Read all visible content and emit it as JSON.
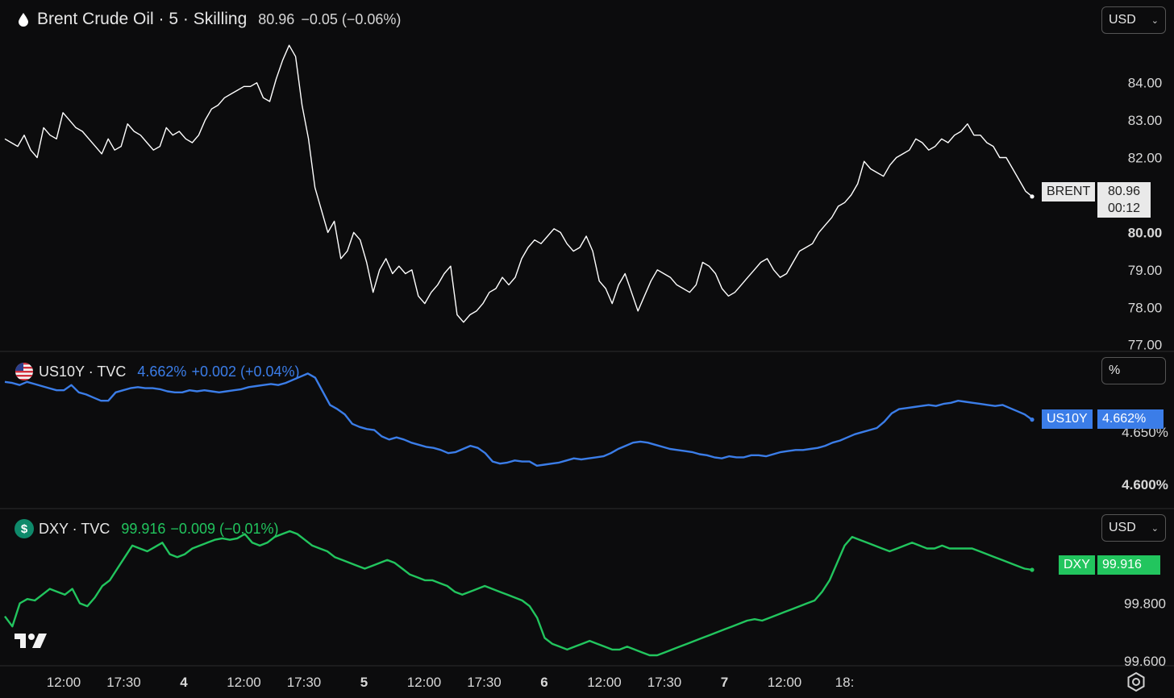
{
  "panes": [
    {
      "id": "brent",
      "icon": "drop-icon",
      "title": "Brent Crude Oil · 5 · Skilling",
      "last": "80.96",
      "change": "−0.05 (−0.06%)",
      "unit": "USD",
      "color": "#ffffff",
      "tag_label": "BRENT",
      "tag_value": "80.96",
      "tag_countdown": "00:12",
      "y_ticks": [
        "84.00",
        "83.00",
        "82.00",
        "80.00",
        "79.00",
        "78.00",
        "77.00"
      ],
      "y_tick_values": [
        84,
        83,
        82,
        80,
        79,
        78,
        77
      ],
      "y_bold_tick": "80.00",
      "ylim": [
        76.95,
        85.35
      ]
    },
    {
      "id": "us10y",
      "icon": "us-flag-icon",
      "title": "US10Y · TVC",
      "last": "4.662%",
      "change": "+0.002 (+0.04%)",
      "unit": "%",
      "color": "#3b7de8",
      "tag_label": "US10Y",
      "tag_value": "4.662%",
      "y_ticks": [
        "4.650%",
        "4.600%"
      ],
      "y_tick_values": [
        4.65,
        4.6
      ],
      "y_bold_tick": "4.600%",
      "ylim": [
        4.5855,
        4.7125
      ]
    },
    {
      "id": "dxy",
      "icon": "dollar-icon",
      "title": "DXY · TVC",
      "last": "99.916",
      "change": "−0.009 (−0.01%)",
      "unit": "USD",
      "color": "#22c55e",
      "tag_label": "DXY",
      "tag_value": "99.916",
      "y_ticks": [
        "99.800",
        "99.600"
      ],
      "y_tick_values": [
        99.8,
        99.6
      ],
      "y_bold_tick": "",
      "ylim": [
        99.595,
        100.075
      ]
    }
  ],
  "x_axis": {
    "labels": [
      "12:00",
      "17:30",
      "4",
      "12:00",
      "17:30",
      "5",
      "12:00",
      "17:30",
      "6",
      "12:00",
      "17:30",
      "7",
      "12:00",
      "18:"
    ],
    "bold": [
      "4",
      "5",
      "6",
      "7"
    ]
  },
  "chart_data": [
    {
      "type": "line",
      "title": "Brent Crude Oil · 5 · Skilling",
      "series": [
        {
          "name": "BRENT",
          "unit": "USD",
          "values": [
            82.5,
            82.4,
            82.3,
            82.6,
            82.2,
            82.0,
            82.8,
            82.6,
            82.5,
            83.2,
            83.0,
            82.8,
            82.7,
            82.5,
            82.3,
            82.1,
            82.5,
            82.2,
            82.3,
            82.9,
            82.7,
            82.6,
            82.4,
            82.2,
            82.3,
            82.8,
            82.6,
            82.7,
            82.5,
            82.4,
            82.6,
            83.0,
            83.3,
            83.4,
            83.6,
            83.7,
            83.8,
            83.9,
            83.9,
            84.0,
            83.6,
            83.5,
            84.1,
            84.6,
            85.0,
            84.7,
            83.4,
            82.5,
            81.2,
            80.6,
            80.0,
            80.3,
            79.3,
            79.5,
            80.0,
            79.8,
            79.2,
            78.4,
            79.0,
            79.3,
            78.9,
            79.1,
            78.9,
            79.0,
            78.3,
            78.1,
            78.4,
            78.6,
            78.9,
            79.1,
            77.8,
            77.6,
            77.8,
            77.9,
            78.1,
            78.4,
            78.5,
            78.8,
            78.6,
            78.8,
            79.3,
            79.6,
            79.8,
            79.7,
            79.9,
            80.1,
            80.0,
            79.7,
            79.5,
            79.6,
            79.9,
            79.5,
            78.7,
            78.5,
            78.1,
            78.6,
            78.9,
            78.4,
            77.9,
            78.3,
            78.7,
            79.0,
            78.9,
            78.8,
            78.6,
            78.5,
            78.4,
            78.6,
            79.2,
            79.1,
            78.9,
            78.5,
            78.3,
            78.4,
            78.6,
            78.8,
            79.0,
            79.2,
            79.3,
            79.0,
            78.8,
            78.9,
            79.2,
            79.5,
            79.6,
            79.7,
            80.0,
            80.2,
            80.4,
            80.7,
            80.8,
            81.0,
            81.3,
            81.9,
            81.7,
            81.6,
            81.5,
            81.8,
            82.0,
            82.1,
            82.2,
            82.5,
            82.4,
            82.2,
            82.3,
            82.5,
            82.4,
            82.6,
            82.7,
            82.9,
            82.6,
            82.6,
            82.4,
            82.3,
            82.0,
            82.0,
            81.7,
            81.4,
            81.1,
            80.96
          ]
        }
      ],
      "xlabel": "",
      "ylabel": "",
      "ylim": [
        76.95,
        85.35
      ]
    },
    {
      "type": "line",
      "title": "US10Y · TVC",
      "series": [
        {
          "name": "US10Y",
          "unit": "%",
          "values": [
            4.698,
            4.697,
            4.695,
            4.698,
            4.696,
            4.694,
            4.692,
            4.69,
            4.69,
            4.695,
            4.688,
            4.686,
            4.683,
            4.68,
            4.68,
            4.688,
            4.69,
            4.692,
            4.693,
            4.692,
            4.692,
            4.691,
            4.689,
            4.688,
            4.688,
            4.69,
            4.689,
            4.69,
            4.689,
            4.688,
            4.689,
            4.69,
            4.691,
            4.693,
            4.694,
            4.695,
            4.696,
            4.695,
            4.697,
            4.7,
            4.703,
            4.706,
            4.702,
            4.689,
            4.676,
            4.672,
            4.667,
            4.658,
            4.655,
            4.653,
            4.652,
            4.646,
            4.643,
            4.645,
            4.643,
            4.64,
            4.638,
            4.636,
            4.635,
            4.633,
            4.63,
            4.631,
            4.634,
            4.637,
            4.635,
            4.63,
            4.622,
            4.62,
            4.621,
            4.623,
            4.622,
            4.622,
            4.618,
            4.619,
            4.62,
            4.621,
            4.623,
            4.625,
            4.624,
            4.625,
            4.626,
            4.627,
            4.63,
            4.634,
            4.637,
            4.64,
            4.641,
            4.64,
            4.638,
            4.636,
            4.634,
            4.633,
            4.632,
            4.631,
            4.629,
            4.628,
            4.626,
            4.625,
            4.627,
            4.626,
            4.626,
            4.628,
            4.628,
            4.627,
            4.629,
            4.631,
            4.632,
            4.633,
            4.633,
            4.634,
            4.635,
            4.637,
            4.64,
            4.642,
            4.645,
            4.648,
            4.65,
            4.652,
            4.654,
            4.66,
            4.668,
            4.672,
            4.673,
            4.674,
            4.675,
            4.676,
            4.675,
            4.677,
            4.678,
            4.68,
            4.679,
            4.678,
            4.677,
            4.676,
            4.675,
            4.676,
            4.673,
            4.67,
            4.667,
            4.662
          ]
        }
      ],
      "xlabel": "",
      "ylabel": "",
      "ylim": [
        4.5855,
        4.7125
      ]
    },
    {
      "type": "line",
      "title": "DXY · TVC",
      "series": [
        {
          "name": "DXY",
          "unit": "USD",
          "values": [
            99.755,
            99.72,
            99.8,
            99.815,
            99.81,
            99.83,
            99.85,
            99.84,
            99.83,
            99.85,
            99.8,
            99.79,
            99.82,
            99.86,
            99.88,
            99.92,
            99.96,
            100.0,
            99.99,
            99.98,
            99.995,
            100.01,
            99.97,
            99.96,
            99.97,
            99.99,
            100.0,
            100.01,
            100.02,
            100.025,
            100.02,
            100.025,
            100.04,
            100.01,
            100.0,
            100.01,
            100.03,
            100.04,
            100.05,
            100.04,
            100.02,
            100.0,
            99.99,
            99.98,
            99.96,
            99.95,
            99.94,
            99.93,
            99.92,
            99.93,
            99.94,
            99.95,
            99.94,
            99.92,
            99.9,
            99.89,
            99.88,
            99.88,
            99.87,
            99.86,
            99.84,
            99.83,
            99.84,
            99.85,
            99.86,
            99.85,
            99.84,
            99.83,
            99.82,
            99.81,
            99.79,
            99.75,
            99.68,
            99.66,
            99.65,
            99.64,
            99.65,
            99.66,
            99.67,
            99.66,
            99.65,
            99.64,
            99.64,
            99.65,
            99.64,
            99.63,
            99.62,
            99.62,
            99.63,
            99.64,
            99.65,
            99.66,
            99.67,
            99.68,
            99.69,
            99.7,
            99.71,
            99.72,
            99.73,
            99.74,
            99.745,
            99.74,
            99.75,
            99.76,
            99.77,
            99.78,
            99.79,
            99.8,
            99.81,
            99.84,
            99.88,
            99.94,
            100.0,
            100.03,
            100.02,
            100.01,
            100.0,
            99.99,
            99.98,
            99.99,
            100.0,
            100.01,
            100.0,
            99.99,
            99.99,
            100.0,
            99.99,
            99.99,
            99.99,
            99.99,
            99.98,
            99.97,
            99.96,
            99.95,
            99.94,
            99.93,
            99.92,
            99.916
          ]
        }
      ],
      "xlabel": "",
      "ylabel": "",
      "ylim": [
        99.595,
        100.075
      ]
    }
  ]
}
